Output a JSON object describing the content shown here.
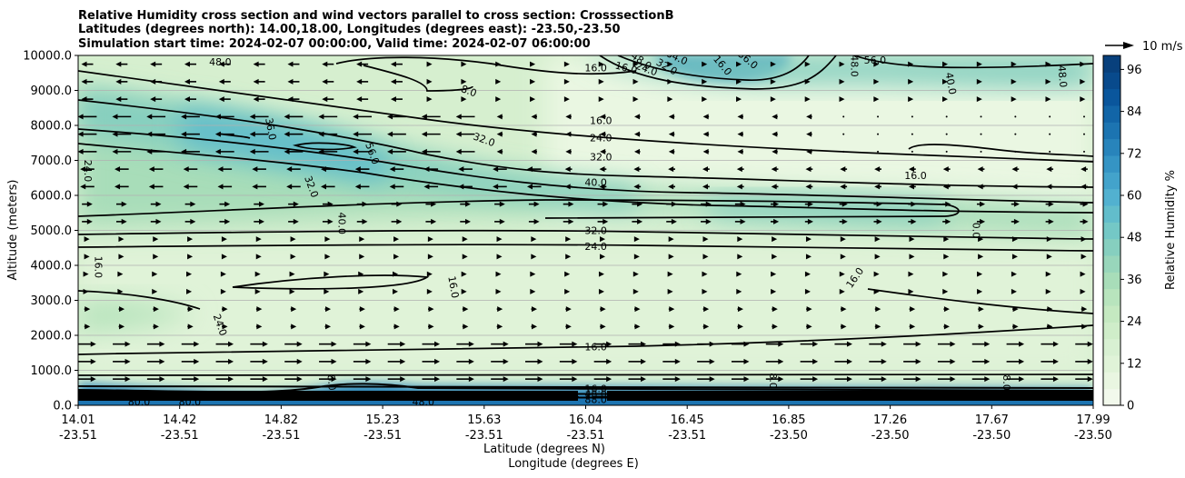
{
  "chart_data": {
    "type": "heatmap",
    "title_lines": [
      "Relative Humidity cross section and wind vectors parallel to cross section: CrosssectionB",
      "Latitudes (degrees north): 14.00,18.00, Longitudes (degrees east): -23.50,-23.50",
      "Simulation start time: 2024-02-07 00:00:00, Valid time: 2024-02-07 06:00:00"
    ],
    "ylabel": "Altitude (meters)",
    "xlabel_lines": [
      "Latitude (degrees N)",
      "Longitude (degrees E)"
    ],
    "xlim": [
      0,
      10
    ],
    "ylim": [
      0,
      10000
    ],
    "x_ticks": [
      {
        "lat": "14.01",
        "lon": "-23.51"
      },
      {
        "lat": "14.42",
        "lon": "-23.51"
      },
      {
        "lat": "14.82",
        "lon": "-23.51"
      },
      {
        "lat": "15.23",
        "lon": "-23.51"
      },
      {
        "lat": "15.63",
        "lon": "-23.51"
      },
      {
        "lat": "16.04",
        "lon": "-23.51"
      },
      {
        "lat": "16.45",
        "lon": "-23.51"
      },
      {
        "lat": "16.85",
        "lon": "-23.50"
      },
      {
        "lat": "17.26",
        "lon": "-23.50"
      },
      {
        "lat": "17.67",
        "lon": "-23.50"
      },
      {
        "lat": "17.99",
        "lon": "-23.50"
      }
    ],
    "y_ticks": [
      "0.0",
      "1000.0",
      "2000.0",
      "3000.0",
      "4000.0",
      "5000.0",
      "6000.0",
      "7000.0",
      "8000.0",
      "9000.0",
      "10000.0"
    ],
    "colorbar": {
      "label": "Relative Humidity %",
      "min": 0,
      "max": 100,
      "ticks": [
        "0",
        "12",
        "24",
        "36",
        "48",
        "60",
        "72",
        "84",
        "96"
      ],
      "colors": [
        "#f2f9ec",
        "#e9f6e1",
        "#e0f3d8",
        "#d8f0d2",
        "#cfedc9",
        "#c5e9c1",
        "#b8e4bd",
        "#a8ddb9",
        "#98d6bb",
        "#86cfbf",
        "#74c8c6",
        "#62bdcb",
        "#52b1d0",
        "#43a3cb",
        "#3594c4",
        "#2884bb",
        "#1c74b1",
        "#1265a7",
        "#0a569c",
        "#084a8c",
        "#08407c"
      ]
    },
    "quiver_key": {
      "label": "10 m/s"
    },
    "contour_labels": [
      {
        "text": "48.0",
        "x": 1.4,
        "y": 9820,
        "rot": 0
      },
      {
        "text": "16.0",
        "x": 5.1,
        "y": 9650,
        "rot": 0
      },
      {
        "text": "16.0",
        "x": 5.4,
        "y": 9650,
        "rot": 15
      },
      {
        "text": "24.0",
        "x": 5.6,
        "y": 9620,
        "rot": 20
      },
      {
        "text": "32.0",
        "x": 5.8,
        "y": 9680,
        "rot": 30
      },
      {
        "text": "48.0",
        "x": 5.55,
        "y": 9850,
        "rot": 35
      },
      {
        "text": "64.0",
        "x": 5.9,
        "y": 9950,
        "rot": 25
      },
      {
        "text": "56.0",
        "x": 6.6,
        "y": 9880,
        "rot": 40
      },
      {
        "text": "16.0",
        "x": 6.35,
        "y": 9720,
        "rot": 50
      },
      {
        "text": "56.0",
        "x": 7.85,
        "y": 9870,
        "rot": 0
      },
      {
        "text": "48.0",
        "x": 7.65,
        "y": 9700,
        "rot": 90
      },
      {
        "text": "40.0",
        "x": 8.6,
        "y": 9200,
        "rot": 80
      },
      {
        "text": "48.0",
        "x": 9.7,
        "y": 9400,
        "rot": 85
      },
      {
        "text": "8.0",
        "x": 3.85,
        "y": 8990,
        "rot": 20
      },
      {
        "text": "16.0",
        "x": 5.15,
        "y": 8140,
        "rot": 0
      },
      {
        "text": "36.0",
        "x": 1.9,
        "y": 7900,
        "rot": 80
      },
      {
        "text": "32.0",
        "x": 4.0,
        "y": 7600,
        "rot": 20
      },
      {
        "text": "24.0",
        "x": 5.15,
        "y": 7650,
        "rot": 0
      },
      {
        "text": "56.0",
        "x": 2.9,
        "y": 7200,
        "rot": 70
      },
      {
        "text": "32.0",
        "x": 5.15,
        "y": 7100,
        "rot": 0
      },
      {
        "text": "24.0",
        "x": 0.1,
        "y": 6700,
        "rot": 90
      },
      {
        "text": "16.0",
        "x": 8.25,
        "y": 6570,
        "rot": 0
      },
      {
        "text": "32.0",
        "x": 2.3,
        "y": 6250,
        "rot": 70
      },
      {
        "text": "40.0",
        "x": 5.1,
        "y": 6380,
        "rot": 0
      },
      {
        "text": "40.0",
        "x": 2.6,
        "y": 5200,
        "rot": 90
      },
      {
        "text": "0.0",
        "x": 8.85,
        "y": 5000,
        "rot": 90
      },
      {
        "text": "32.0",
        "x": 5.1,
        "y": 5000,
        "rot": 0
      },
      {
        "text": "24.0",
        "x": 5.1,
        "y": 4550,
        "rot": 0
      },
      {
        "text": "16.0",
        "x": 0.2,
        "y": 3950,
        "rot": 90
      },
      {
        "text": "16.0",
        "x": 3.7,
        "y": 3380,
        "rot": 80
      },
      {
        "text": "16.0",
        "x": 7.65,
        "y": 3650,
        "rot": -55
      },
      {
        "text": "24.0",
        "x": 1.4,
        "y": 2300,
        "rot": 70
      },
      {
        "text": "16.0",
        "x": 5.1,
        "y": 1680,
        "rot": 0
      },
      {
        "text": "8.0",
        "x": 6.85,
        "y": 700,
        "rot": 90
      },
      {
        "text": "8.0",
        "x": 9.15,
        "y": 650,
        "rot": 90
      },
      {
        "text": "8.0",
        "x": 2.5,
        "y": 650,
        "rot": 85
      },
      {
        "text": "16.0",
        "x": 5.1,
        "y": 480,
        "rot": 0
      },
      {
        "text": "48.0",
        "x": 5.1,
        "y": 330,
        "rot": 0
      },
      {
        "text": "88.0",
        "x": 5.1,
        "y": 170,
        "rot": 0
      },
      {
        "text": "80.0",
        "x": 0.6,
        "y": 100,
        "rot": 0
      },
      {
        "text": "80.0",
        "x": 1.1,
        "y": 100,
        "rot": 0
      },
      {
        "text": "48.0",
        "x": 3.4,
        "y": 100,
        "rot": 0
      }
    ]
  }
}
